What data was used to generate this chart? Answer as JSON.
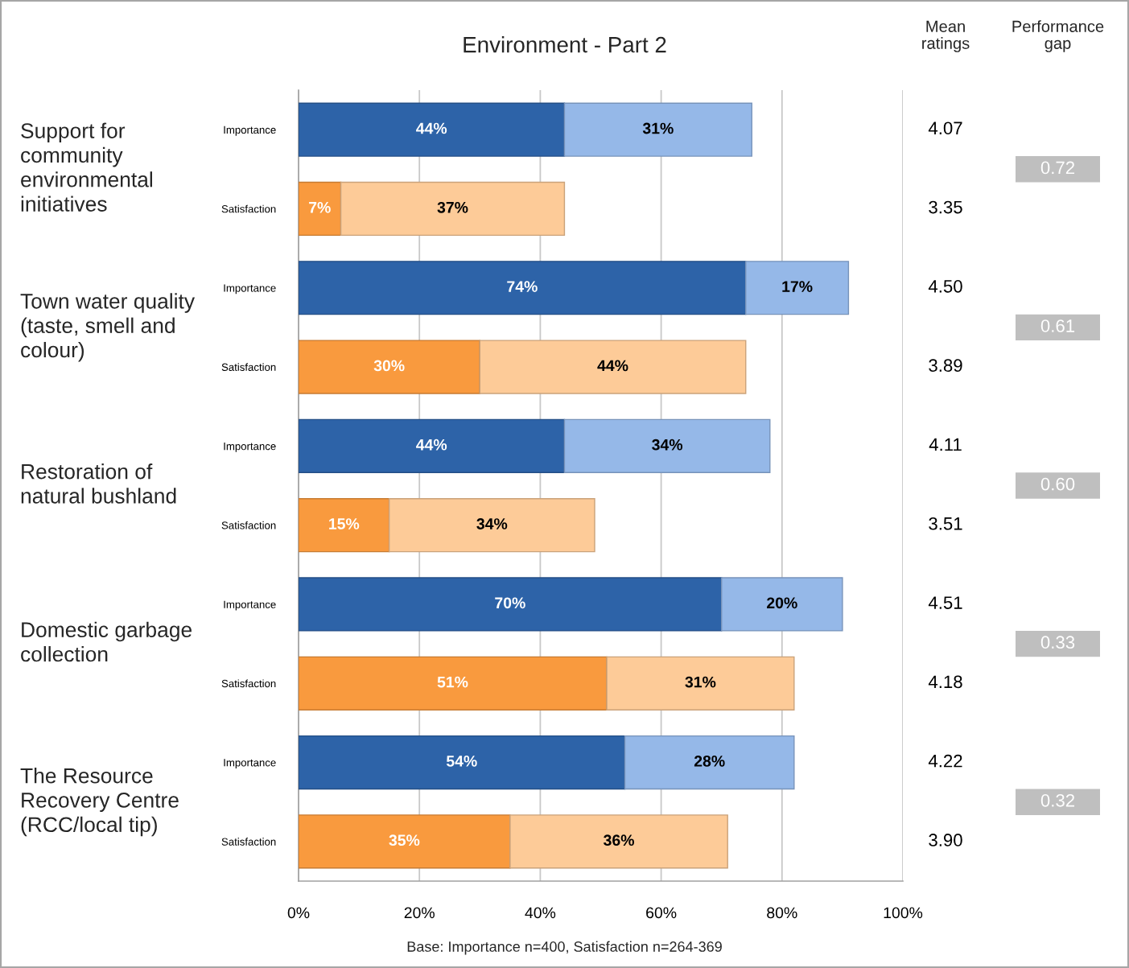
{
  "chart_data": [
    {
      "type": "bar",
      "orientation": "horizontal",
      "stacked": true,
      "title": "Environment - Part 2",
      "categories": [
        "Importance",
        "Satisfaction",
        "Importance",
        "Satisfaction",
        "Importance",
        "Satisfaction",
        "Importance",
        "Satisfaction",
        "Importance",
        "Satisfaction"
      ],
      "series": [
        {
          "colors": [
            "#2d63a8",
            "#f99a3e",
            "#2d63a8",
            "#f99a3e",
            "#2d63a8",
            "#f99a3e",
            "#2d63a8",
            "#f99a3e",
            "#2d63a8",
            "#f99a3e"
          ],
          "values": [
            44,
            7,
            74,
            30,
            44,
            15,
            70,
            51,
            54,
            35
          ],
          "value_labels": [
            "44%",
            "7%",
            "74%",
            "30%",
            "44%",
            "15%",
            "70%",
            "51%",
            "54%",
            "35%"
          ]
        },
        {
          "colors": [
            "#95b8e8",
            "#fdcb98",
            "#95b8e8",
            "#fdcb98",
            "#95b8e8",
            "#fdcb98",
            "#95b8e8",
            "#fdcb98",
            "#95b8e8",
            "#fdcb98"
          ],
          "values": [
            31,
            37,
            17,
            44,
            34,
            34,
            20,
            31,
            28,
            36
          ],
          "value_labels": [
            "31%",
            "37%",
            "17%",
            "44%",
            "34%",
            "34%",
            "20%",
            "31%",
            "28%",
            "36%"
          ]
        }
      ],
      "xlim": [
        0,
        100
      ],
      "xticks": [
        {
          "value": 0,
          "label": "0%"
        },
        {
          "value": 20,
          "label": "20%"
        },
        {
          "value": 40,
          "label": "40%"
        },
        {
          "value": 60,
          "label": "60%"
        },
        {
          "value": 80,
          "label": "80%"
        },
        {
          "value": 100,
          "label": "100%"
        }
      ],
      "grid": "x",
      "annotations": [
        "Support for\ncommunity\nenvironmental\ninitiatives",
        "Town water quality\n(taste, smell and\ncolour)",
        "Restoration of\nnatural bushland",
        "Domestic garbage\ncollection",
        "The Resource\nRecovery Centre\n(RCC/local tip)",
        "Base: Importance n=400, Satisfaction n=264-369"
      ]
    },
    {
      "type": "other",
      "title": "Mean\nratings",
      "annotations": [
        "4.07",
        "3.35",
        "4.50",
        "3.89",
        "4.11",
        "3.51",
        "4.51",
        "4.18",
        "4.22",
        "3.90"
      ]
    },
    {
      "type": "other",
      "title": "Performance\ngap",
      "annotations": [
        "0.72",
        "0.61",
        "0.60",
        "0.33",
        "0.32"
      ],
      "color": "#bfbfbf"
    }
  ]
}
